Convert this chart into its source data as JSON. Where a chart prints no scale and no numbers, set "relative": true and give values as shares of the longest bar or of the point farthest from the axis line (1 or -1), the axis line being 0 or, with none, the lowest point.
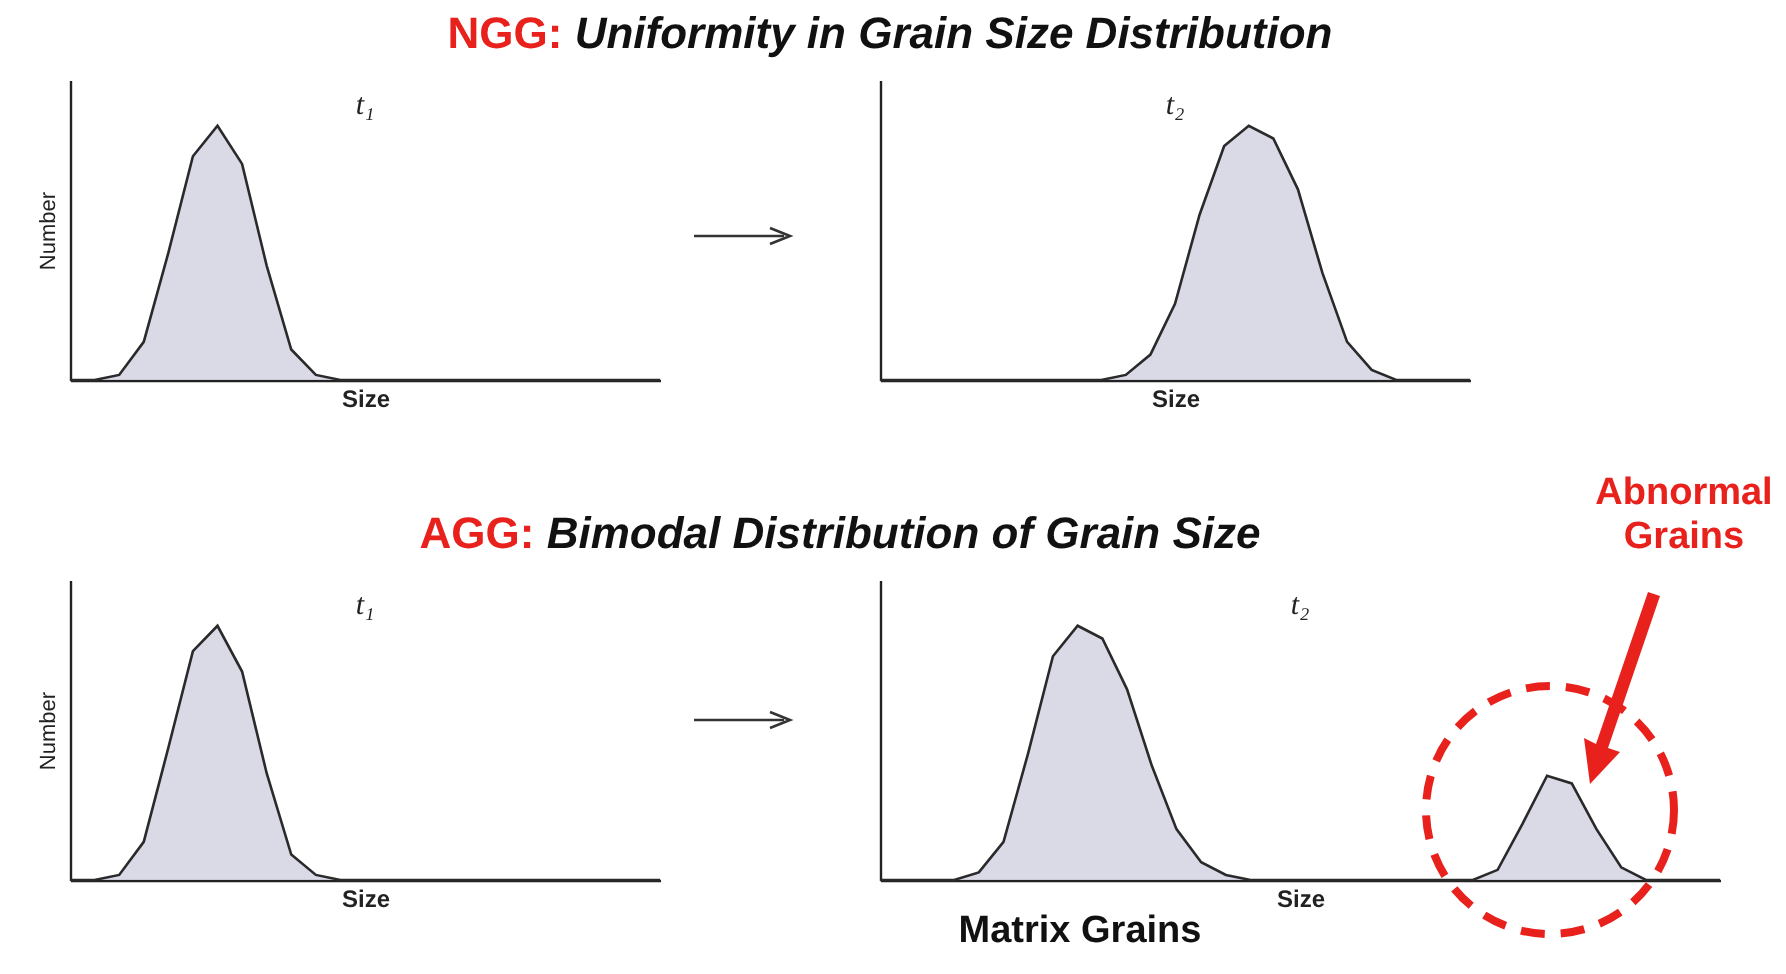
{
  "chart_data": [
    {
      "type": "area",
      "title": "NGG: Uniformity in Grain Size Distribution",
      "xlabel": "Size",
      "ylabel": "Number",
      "relative": true,
      "tick_labels": false,
      "color": "#c9cadb",
      "annotations": [
        "t₁"
      ],
      "categories": [
        null,
        null,
        null,
        null,
        null,
        null,
        null,
        null,
        null,
        null,
        null,
        null,
        null,
        null,
        null,
        null,
        null,
        null,
        null,
        null,
        null,
        null,
        null,
        null,
        null
      ],
      "values": [
        0,
        0,
        0.02,
        0.15,
        0.5,
        0.88,
        1,
        0.85,
        0.45,
        0.12,
        0.02,
        0,
        0,
        0,
        0,
        0,
        0,
        0,
        0,
        0,
        0,
        0,
        0,
        0,
        0
      ]
    },
    {
      "type": "area",
      "xlabel": "Size",
      "relative": true,
      "tick_labels": false,
      "color": "#c9cadb",
      "annotations": [
        "t₂"
      ],
      "categories": [
        null,
        null,
        null,
        null,
        null,
        null,
        null,
        null,
        null,
        null,
        null,
        null,
        null,
        null,
        null,
        null,
        null,
        null,
        null,
        null,
        null,
        null,
        null,
        null,
        null
      ],
      "values": [
        0,
        0,
        0,
        0,
        0,
        0,
        0,
        0,
        0,
        0,
        0.02,
        0.1,
        0.3,
        0.65,
        0.92,
        1,
        0.95,
        0.75,
        0.42,
        0.15,
        0.04,
        0,
        0,
        0,
        0
      ]
    },
    {
      "type": "area",
      "title": "AGG: Bimodal Distribution of Grain Size",
      "xlabel": "Size",
      "ylabel": "Number",
      "relative": true,
      "tick_labels": false,
      "color": "#c9cadb",
      "annotations": [
        "t₁"
      ],
      "categories": [
        null,
        null,
        null,
        null,
        null,
        null,
        null,
        null,
        null,
        null,
        null,
        null,
        null,
        null,
        null,
        null,
        null,
        null,
        null,
        null,
        null,
        null,
        null,
        null,
        null
      ],
      "values": [
        0,
        0,
        0.02,
        0.15,
        0.52,
        0.9,
        1,
        0.82,
        0.42,
        0.1,
        0.02,
        0,
        0,
        0,
        0,
        0,
        0,
        0,
        0,
        0,
        0,
        0,
        0,
        0,
        0
      ]
    },
    {
      "type": "area",
      "xlabel": "Size",
      "relative": true,
      "tick_labels": false,
      "color": "#c9cadb",
      "annotations": [
        "t₂",
        "Abnormal Grains",
        "Matrix Grains"
      ],
      "categories": [
        null,
        null,
        null,
        null,
        null,
        null,
        null,
        null,
        null,
        null,
        null,
        null,
        null,
        null,
        null,
        null,
        null,
        null,
        null,
        null,
        null,
        null,
        null,
        null,
        null,
        null,
        null,
        null,
        null,
        null,
        null,
        null,
        null,
        null,
        null
      ],
      "values": [
        0,
        0,
        0,
        0,
        0.03,
        0.15,
        0.5,
        0.88,
        1,
        0.95,
        0.75,
        0.45,
        0.2,
        0.07,
        0.02,
        0,
        0,
        0,
        0,
        0,
        0,
        0,
        0,
        0,
        0,
        0.04,
        0.22,
        0.41,
        0.38,
        0.2,
        0.05,
        0,
        0,
        0,
        0
      ]
    }
  ]
}
